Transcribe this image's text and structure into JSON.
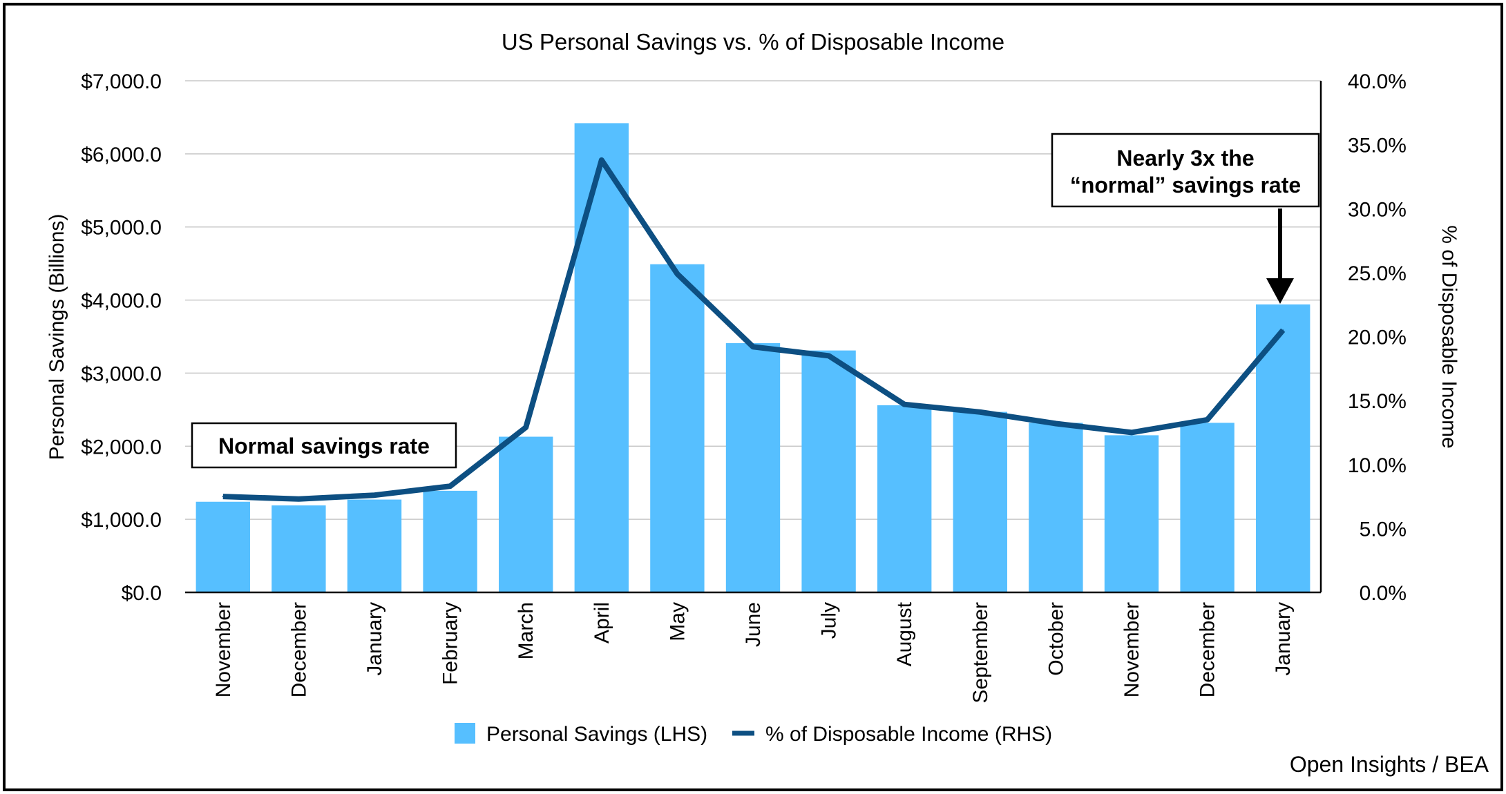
{
  "chart_data": {
    "type": "bar",
    "title": "US Personal Savings vs. % of Disposable Income",
    "categories": [
      "November",
      "December",
      "January",
      "February",
      "March",
      "April",
      "May",
      "June",
      "July",
      "August",
      "September",
      "October",
      "November",
      "December",
      "January"
    ],
    "series": [
      {
        "name": "Personal Savings (LHS)",
        "type": "bar",
        "axis": "left",
        "color": "#56bfff",
        "values": [
          1240,
          1190,
          1270,
          1390,
          2130,
          6420,
          4490,
          3410,
          3310,
          2560,
          2470,
          2320,
          2150,
          2320,
          3940
        ]
      },
      {
        "name": "% of Disposable Income (RHS)",
        "type": "line",
        "axis": "right",
        "color": "#0d4f82",
        "values": [
          7.5,
          7.3,
          7.6,
          8.3,
          12.9,
          33.8,
          24.9,
          19.2,
          18.5,
          14.7,
          14.1,
          13.2,
          12.5,
          13.5,
          20.5
        ]
      }
    ],
    "ylabel": "Personal Savings (Billions)",
    "ylim": [
      0,
      7000
    ],
    "yticks": [
      "$0.0",
      "$1,000.0",
      "$2,000.0",
      "$3,000.0",
      "$4,000.0",
      "$5,000.0",
      "$6,000.0",
      "$7,000.0"
    ],
    "y2label": "% of Disposable Income",
    "y2lim": [
      0,
      40
    ],
    "y2ticks": [
      "0.0%",
      "5.0%",
      "10.0%",
      "15.0%",
      "20.0%",
      "25.0%",
      "30.0%",
      "35.0%",
      "40.0%"
    ],
    "grid": true,
    "legend": "bottom-center",
    "annotations": [
      {
        "text": [
          "Normal savings rate"
        ]
      },
      {
        "text": [
          "Nearly 3x the",
          "“normal” savings rate"
        ],
        "arrow_to_category_index": 14
      }
    ]
  },
  "source": "Open Insights / BEA"
}
